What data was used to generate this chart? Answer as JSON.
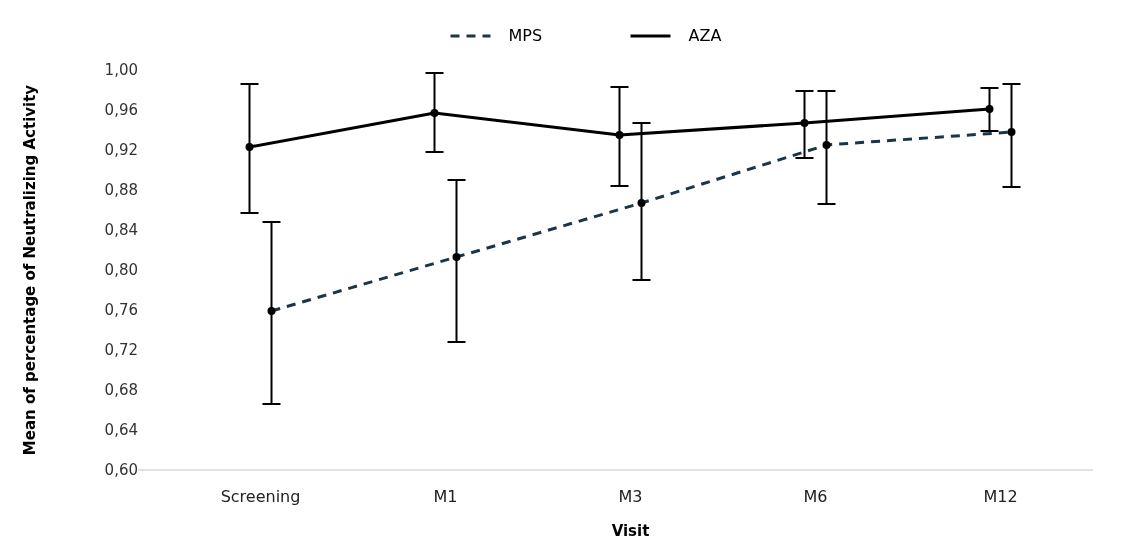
{
  "chart_data": {
    "type": "line",
    "xlabel": "Visit",
    "ylabel": "Mean of percentage of Neutralizing Activity",
    "categories": [
      "Screening",
      "M1",
      "M3",
      "M6",
      "M12"
    ],
    "ylim": [
      0.6,
      1.0
    ],
    "yticks": [
      {
        "value": 0.6,
        "label": "0,60"
      },
      {
        "value": 0.64,
        "label": "0,64"
      },
      {
        "value": 0.68,
        "label": "0,68"
      },
      {
        "value": 0.72,
        "label": "0,72"
      },
      {
        "value": 0.76,
        "label": "0,76"
      },
      {
        "value": 0.8,
        "label": "0,80"
      },
      {
        "value": 0.84,
        "label": "0,84"
      },
      {
        "value": 0.88,
        "label": "0,88"
      },
      {
        "value": 0.92,
        "label": "0,92"
      },
      {
        "value": 0.96,
        "label": "0,96"
      },
      {
        "value": 1.0,
        "label": "1,00"
      }
    ],
    "legend": "top",
    "grid": false,
    "marker": "circle",
    "series": [
      {
        "name": "MPS",
        "color": "#1b3446",
        "line_style": "dashed",
        "values": [
          0.759,
          0.813,
          0.867,
          0.925,
          0.938
        ],
        "errors": [
          [
            0.666,
            0.848
          ],
          [
            0.728,
            0.89
          ],
          [
            0.79,
            0.947
          ],
          [
            0.866,
            0.979
          ],
          [
            0.883,
            0.986
          ]
        ]
      },
      {
        "name": "AZA",
        "color": "#000000",
        "line_style": "solid",
        "values": [
          0.923,
          0.957,
          0.935,
          0.947,
          0.961
        ],
        "errors": [
          [
            0.857,
            0.986
          ],
          [
            0.918,
            0.997
          ],
          [
            0.884,
            0.983
          ],
          [
            0.912,
            0.979
          ],
          [
            0.939,
            0.982
          ]
        ]
      }
    ]
  }
}
